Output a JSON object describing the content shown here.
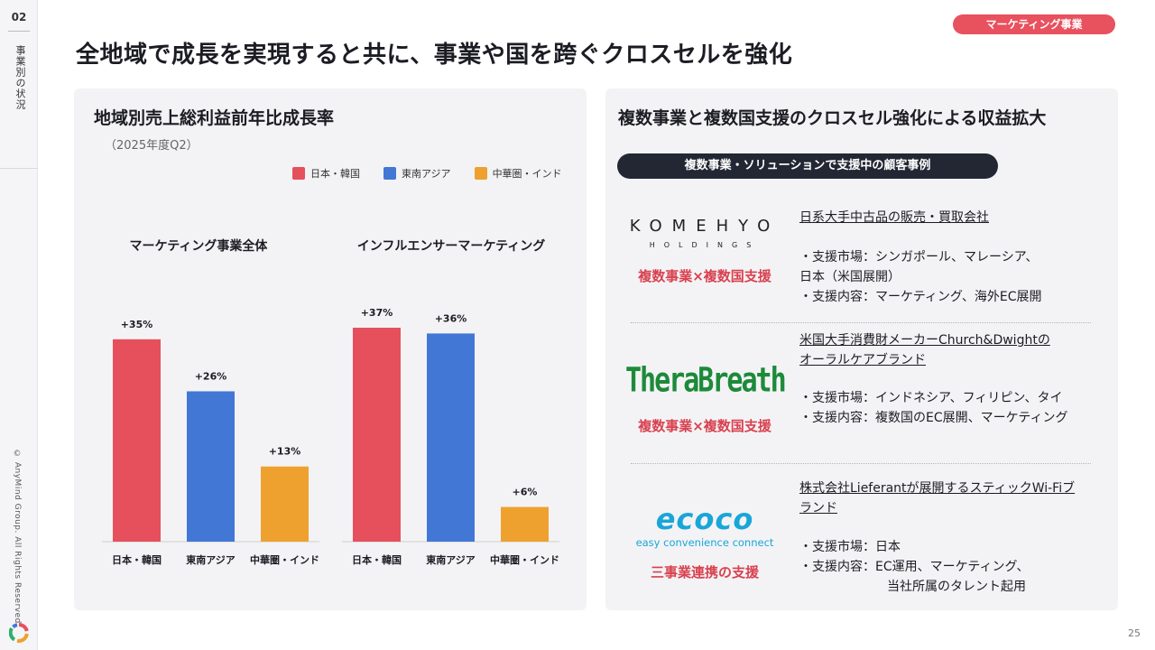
{
  "sidebar": {
    "section_number": "02",
    "section_title": "事業別の状況",
    "copyright": "© AnyMind Group. All Rights Reserved."
  },
  "header": {
    "tag": "マーケティング事業",
    "title": "全地域で成長を実現すると共に、事業や国を跨ぐクロスセルを強化"
  },
  "left_panel": {
    "title": "地域別売上総利益前年比成長率",
    "subtitle": "（2025年度Q2）"
  },
  "chart_data": {
    "type": "bar",
    "title": "地域別売上総利益前年比成長率",
    "subtitle": "（2025年度Q2）",
    "legend_position": "top-right",
    "categories": [
      "日本・韓国",
      "東南アジア",
      "中華圏・インド"
    ],
    "colors": [
      "#e5505c",
      "#4277d6",
      "#eea12f"
    ],
    "legend": [
      "日本・韓国",
      "東南アジア",
      "中華圏・インド"
    ],
    "groups": [
      {
        "name": "マーケティング事業全体",
        "values": [
          35,
          26,
          13
        ],
        "labels": [
          "+35%",
          "+26%",
          "+13%"
        ]
      },
      {
        "name": "インフルエンサーマーケティング",
        "values": [
          37,
          36,
          6
        ],
        "labels": [
          "+37%",
          "+36%",
          "+6%"
        ]
      }
    ],
    "ylim": [
      0,
      40
    ],
    "grid": false
  },
  "right_panel": {
    "title": "複数事業と複数国支援のクロスセル強化による収益拡大",
    "case_header": "複数事業・ソリューションで支援中の顧客事例",
    "cases": [
      {
        "logo_main": "KOMEHYO",
        "logo_sub": "HOLDINGS",
        "support_type": "複数事業×複数国支援",
        "client": "日系大手中古品の販売・買取会社",
        "market_lines": [
          "・支援市場：シンガポール、マレーシア、",
          "日本（米国展開）"
        ],
        "content_lines": [
          "・支援内容：マーケティング、海外EC展開"
        ],
        "logo_color": "#222222"
      },
      {
        "logo_main": "TheraBreath",
        "logo_sub": "",
        "support_type": "複数事業×複数国支援",
        "client_lines": [
          "米国大手消費財メーカーChurch&Dwightの",
          "オーラルケアブランド"
        ],
        "market_lines": [
          "・支援市場：インドネシア、フィリピン、タイ"
        ],
        "content_lines": [
          "・支援内容：複数国のEC展開、マーケティング"
        ],
        "logo_color": "#1d8a3a"
      },
      {
        "logo_main": "ecoco",
        "logo_sub": "easy convenience connect",
        "support_type": "三事業連携の支援",
        "client_lines": [
          "株式会社Lieferantが展開するスティックWi-Fiブ",
          "ランド"
        ],
        "market_lines": [
          "・支援市場：日本"
        ],
        "content_lines": [
          "・支援内容：EC運用、マーケティング、",
          "当社所属のタレント起用"
        ],
        "logo_color": "#19a6d8"
      }
    ]
  },
  "footer": {
    "page_number": "25"
  }
}
